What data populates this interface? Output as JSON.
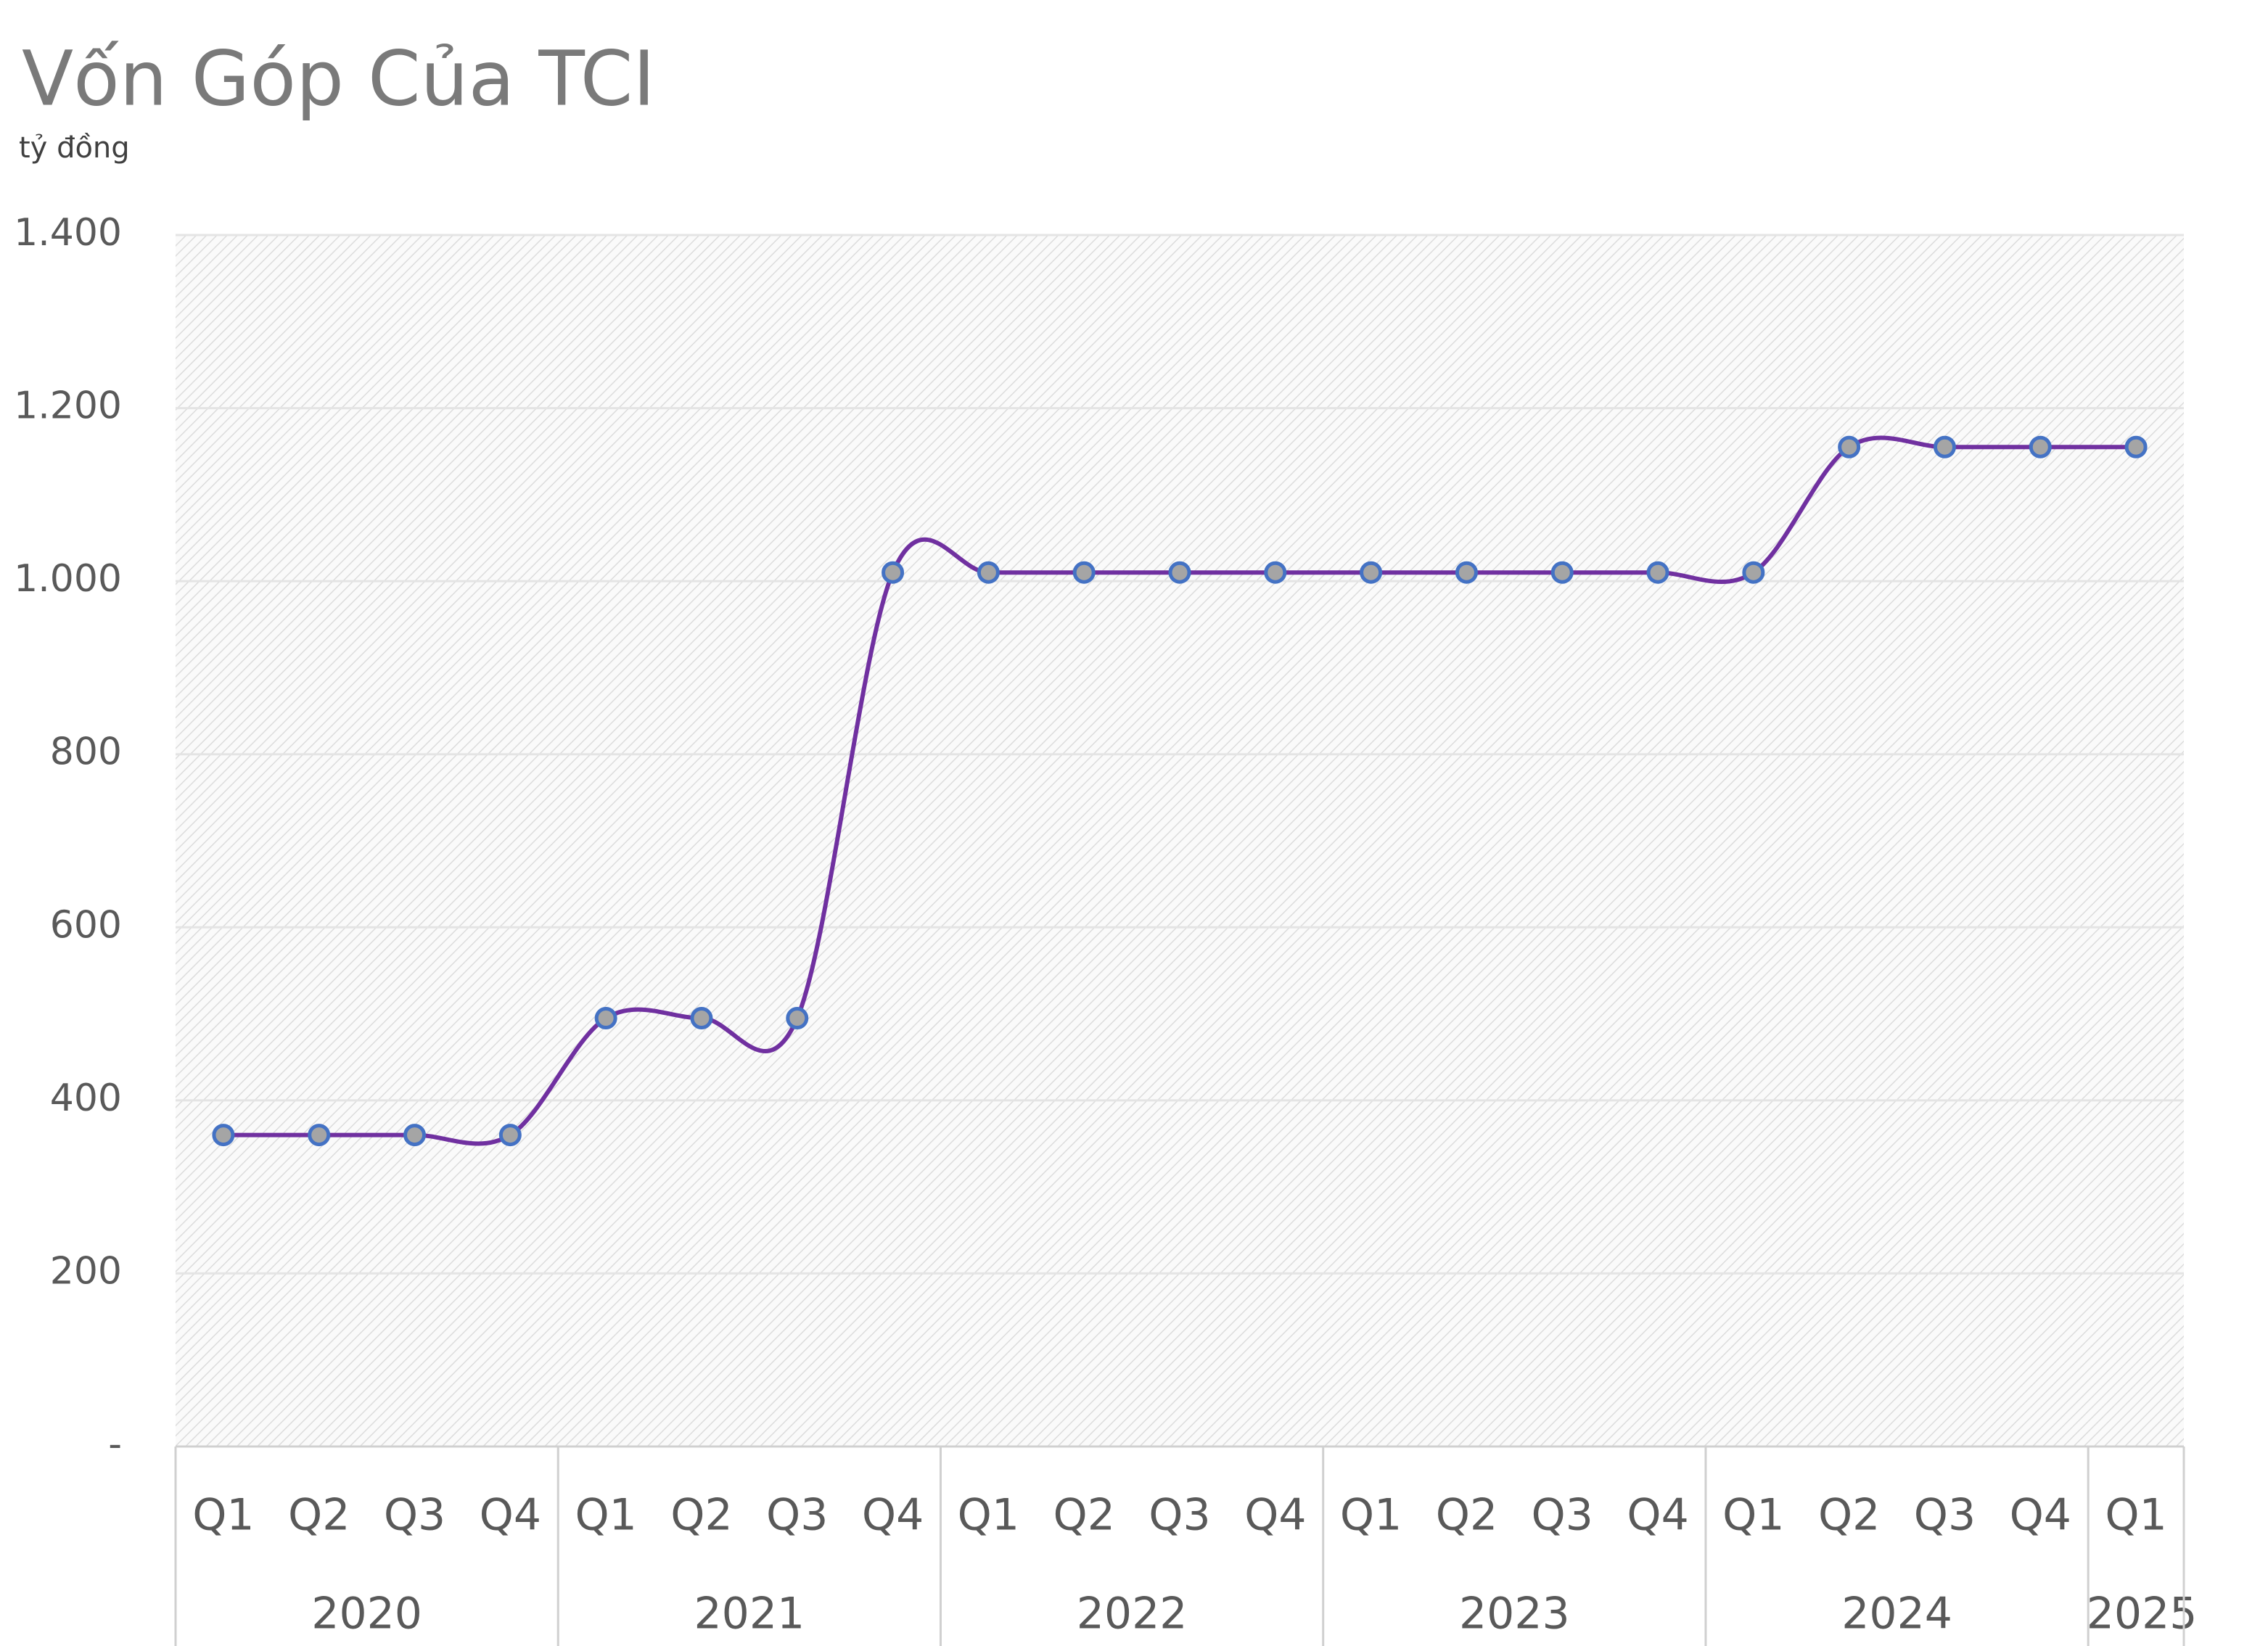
{
  "chart_data": {
    "type": "line",
    "title": "Vốn Góp Của TCI",
    "subtitle": "tỷ đồng",
    "category_groups": [
      {
        "name": "2020",
        "categories": [
          "Q1",
          "Q2",
          "Q3",
          "Q4"
        ]
      },
      {
        "name": "2021",
        "categories": [
          "Q1",
          "Q2",
          "Q3",
          "Q4"
        ]
      },
      {
        "name": "2022",
        "categories": [
          "Q1",
          "Q2",
          "Q3",
          "Q4"
        ]
      },
      {
        "name": "2023",
        "categories": [
          "Q1",
          "Q2",
          "Q3",
          "Q4"
        ]
      },
      {
        "name": "2024",
        "categories": [
          "Q1",
          "Q2",
          "Q3",
          "Q4"
        ]
      },
      {
        "name": "2025",
        "categories": [
          "Q1"
        ]
      }
    ],
    "values": [
      360,
      360,
      360,
      360,
      495,
      495,
      495,
      1010,
      1010,
      1010,
      1010,
      1010,
      1010,
      1010,
      1010,
      1010,
      1010,
      1155,
      1155,
      1155,
      1155
    ],
    "color": "#7030a0",
    "marker_fill": "#a5a5a5",
    "marker_edge": "#4472c4",
    "smooth": true,
    "ylim": [
      0,
      1400
    ],
    "yticks": [
      {
        "value": 0,
        "label": "-"
      },
      200,
      400,
      600,
      800,
      {
        "value": 1000,
        "label": "1.000"
      },
      {
        "value": 1200,
        "label": "1.200"
      },
      {
        "value": 1400,
        "label": "1.400"
      }
    ],
    "grid": true
  }
}
